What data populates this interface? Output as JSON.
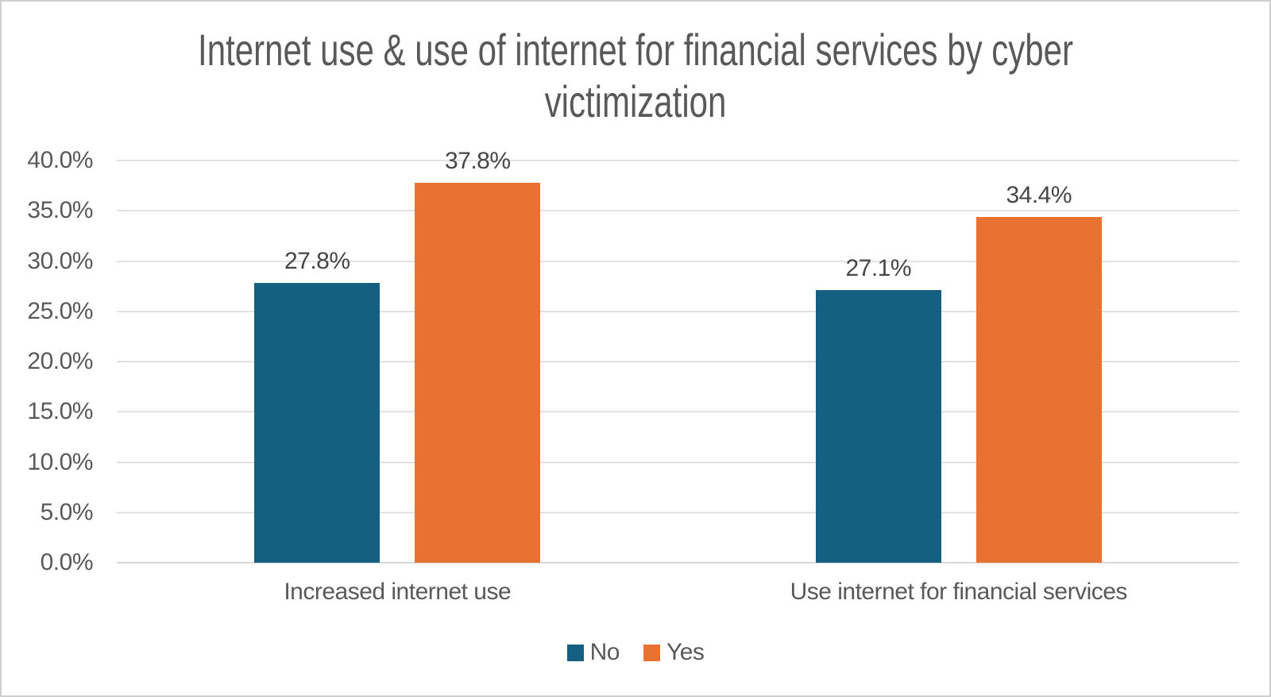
{
  "chart": {
    "title": "Internet use & use of internet for financial services by cyber victimization",
    "title_line1": "Internet use & use of internet for financial services by cyber",
    "title_line2": "victimization"
  },
  "chart_data": {
    "type": "bar",
    "title": "Internet use & use of internet for financial services by cyber victimization",
    "categories": [
      "Increased internet use",
      "Use internet for financial services"
    ],
    "series": [
      {
        "name": "No",
        "color": "#156082",
        "values": [
          27.8,
          27.1
        ],
        "labels": [
          "27.8%",
          "27.1%"
        ]
      },
      {
        "name": "Yes",
        "color": "#E97132",
        "values": [
          37.8,
          34.4
        ],
        "labels": [
          "37.8%",
          "34.4%"
        ]
      }
    ],
    "y_axis": {
      "min": 0,
      "max": 40,
      "step": 5,
      "tick_labels": [
        "0.0%",
        "5.0%",
        "10.0%",
        "15.0%",
        "20.0%",
        "25.0%",
        "30.0%",
        "35.0%",
        "40.0%"
      ]
    },
    "xlabel": "",
    "ylabel": "",
    "grid": true,
    "legend_position": "bottom",
    "colors": {
      "title_text": "#595959",
      "axis_text": "#595959",
      "data_label_text": "#474747",
      "gridline": "#e2e2e2",
      "series_no": "#156082",
      "series_yes": "#E97132"
    }
  }
}
